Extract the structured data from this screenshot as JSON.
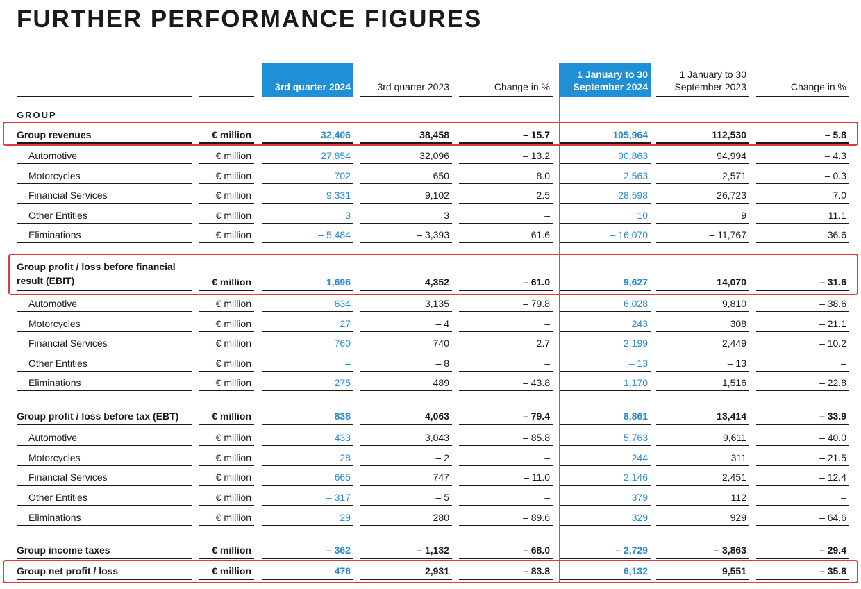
{
  "title": "FURTHER PERFORMANCE FIGURES",
  "group_label": "GROUP",
  "headers": [
    "3rd quarter 2024",
    "3rd quarter 2023",
    "Change in %",
    "1 January to 30 September 2024",
    "1 January to 30 September 2023",
    "Change in %"
  ],
  "rows": [
    {
      "label": "Group revenues",
      "unit": "€ million",
      "bold": true,
      "vals": [
        "32,406",
        "38,458",
        "– 15.7",
        "105,964",
        "112,530",
        "– 5.8"
      ]
    },
    {
      "label": "Automotive",
      "unit": "€ million",
      "vals": [
        "27,854",
        "32,096",
        "– 13.2",
        "90,863",
        "94,994",
        "– 4.3"
      ]
    },
    {
      "label": "Motorcycles",
      "unit": "€ million",
      "vals": [
        "702",
        "650",
        "8.0",
        "2,563",
        "2,571",
        "– 0.3"
      ]
    },
    {
      "label": "Financial Services",
      "unit": "€ million",
      "vals": [
        "9,331",
        "9,102",
        "2.5",
        "28,598",
        "26,723",
        "7.0"
      ]
    },
    {
      "label": "Other Entities",
      "unit": "€ million",
      "vals": [
        "3",
        "3",
        "–",
        "10",
        "9",
        "11.1"
      ]
    },
    {
      "label": "Eliminations",
      "unit": "€ million",
      "vals": [
        "– 5,484",
        "– 3,393",
        "61.6",
        "– 16,070",
        "– 11,767",
        "36.6"
      ]
    },
    {
      "label": "Group profit / loss before financial result (EBIT)",
      "unit": "€ million",
      "bold": true,
      "vals": [
        "1,696",
        "4,352",
        "– 61.0",
        "9,627",
        "14,070",
        "– 31.6"
      ]
    },
    {
      "label": "Automotive",
      "unit": "€ million",
      "vals": [
        "634",
        "3,135",
        "– 79.8",
        "6,028",
        "9,810",
        "– 38.6"
      ]
    },
    {
      "label": "Motorcycles",
      "unit": "€ million",
      "vals": [
        "27",
        "– 4",
        "–",
        "243",
        "308",
        "– 21.1"
      ]
    },
    {
      "label": "Financial Services",
      "unit": "€ million",
      "vals": [
        "760",
        "740",
        "2.7",
        "2,199",
        "2,449",
        "– 10.2"
      ]
    },
    {
      "label": "Other Entities",
      "unit": "€ million",
      "vals": [
        "–",
        "– 8",
        "–",
        "– 13",
        "– 13",
        "–"
      ]
    },
    {
      "label": "Eliminations",
      "unit": "€ million",
      "vals": [
        "275",
        "489",
        "– 43.8",
        "1,170",
        "1,516",
        "– 22.8"
      ]
    },
    {
      "label": "Group profit / loss before tax (EBT)",
      "unit": "€ million",
      "bold": true,
      "vals": [
        "838",
        "4,063",
        "– 79.4",
        "8,861",
        "13,414",
        "– 33.9"
      ]
    },
    {
      "label": "Automotive",
      "unit": "€ million",
      "vals": [
        "433",
        "3,043",
        "– 85.8",
        "5,763",
        "9,611",
        "– 40.0"
      ]
    },
    {
      "label": "Motorcycles",
      "unit": "€ million",
      "vals": [
        "28",
        "– 2",
        "–",
        "244",
        "311",
        "– 21.5"
      ]
    },
    {
      "label": "Financial Services",
      "unit": "€ million",
      "vals": [
        "665",
        "747",
        "– 11.0",
        "2,146",
        "2,451",
        "– 12.4"
      ]
    },
    {
      "label": "Other Entities",
      "unit": "€ million",
      "vals": [
        "– 317",
        "– 5",
        "–",
        "379",
        "112",
        "–"
      ]
    },
    {
      "label": "Eliminations",
      "unit": "€ million",
      "vals": [
        "29",
        "280",
        "– 89.6",
        "329",
        "929",
        "– 64.6"
      ]
    },
    {
      "label": "Group income taxes",
      "unit": "€ million",
      "bold": true,
      "vals": [
        "– 362",
        "– 1,132",
        "– 68.0",
        "– 2,729",
        "– 3,863",
        "– 29.4"
      ]
    },
    {
      "label": "Group net profit / loss",
      "unit": "€ million",
      "bold": true,
      "vals": [
        "476",
        "2,931",
        "– 83.8",
        "6,132",
        "9,551",
        "– 35.8"
      ]
    }
  ],
  "colors": {
    "highlight": "#1f8fd6",
    "blue_text": "#2a8bd0",
    "box": "#e03a3a"
  }
}
